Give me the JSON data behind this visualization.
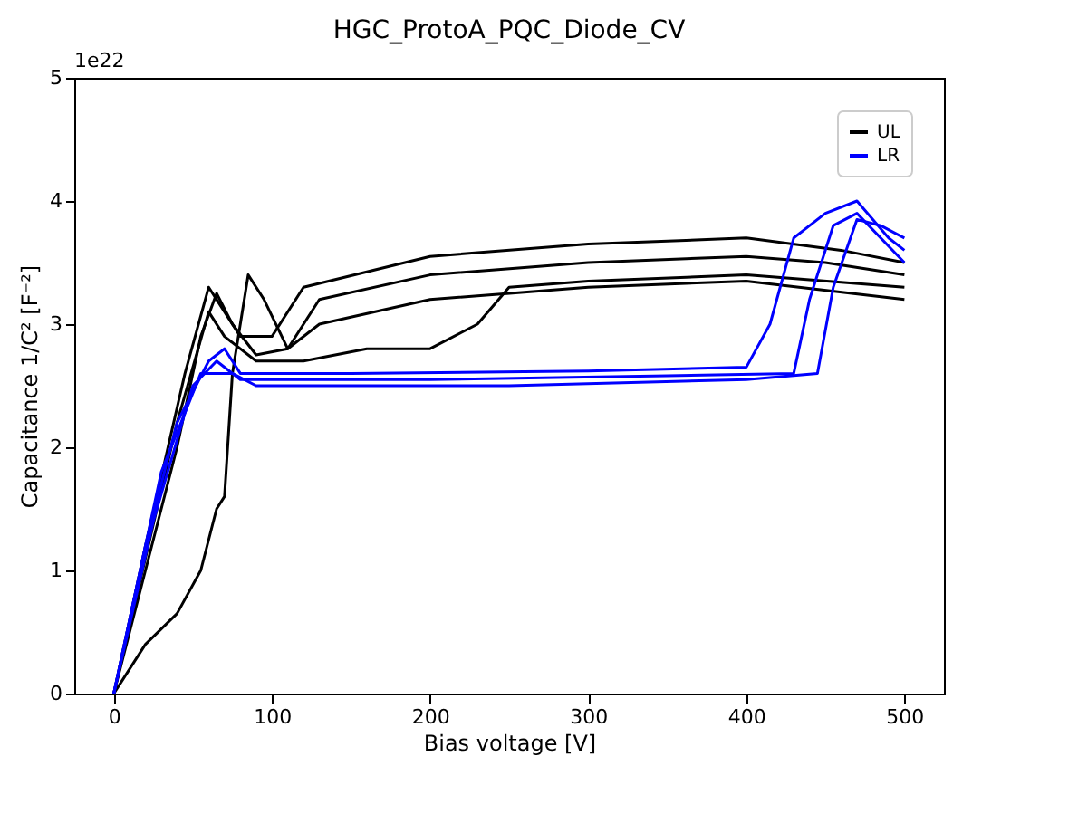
{
  "chart_data": {
    "type": "line",
    "title": "HGC_ProtoA_PQC_Diode_CV",
    "xlabel": "Bias voltage [V]",
    "ylabel": "Capacitance 1/C² [F⁻²]",
    "annotations": [
      "1e22"
    ],
    "xlim": [
      -25,
      525
    ],
    "xticks": [
      0,
      100,
      200,
      300,
      400,
      500
    ],
    "ylim": [
      0,
      5
    ],
    "yticks": [
      0,
      1,
      2,
      3,
      4,
      5
    ],
    "grid": false,
    "legend": "top right",
    "line_style": "solid",
    "marker": "none",
    "series": [
      {
        "name": "UL",
        "color": "#000000",
        "x": [
          0,
          20,
          40,
          55,
          65,
          75,
          90,
          110,
          130,
          200,
          300,
          400,
          450,
          500
        ],
        "values": [
          0,
          1.0,
          2.0,
          2.9,
          3.25,
          3.0,
          2.75,
          2.8,
          3.2,
          3.4,
          3.5,
          3.55,
          3.5,
          3.4
        ]
      },
      {
        "color": "#000000",
        "x": [
          0,
          20,
          40,
          55,
          65,
          70,
          75,
          85,
          95,
          110,
          130,
          200,
          300,
          400,
          500
        ],
        "values": [
          0,
          0.4,
          0.65,
          1.0,
          1.5,
          1.6,
          2.6,
          3.4,
          3.2,
          2.8,
          3.0,
          3.2,
          3.3,
          3.35,
          3.2
        ]
      },
      {
        "color": "#000000",
        "x": [
          0,
          20,
          40,
          60,
          70,
          90,
          120,
          160,
          200,
          230,
          250,
          300,
          400,
          500
        ],
        "values": [
          0,
          1.1,
          2.2,
          3.1,
          2.9,
          2.7,
          2.7,
          2.8,
          2.8,
          3.0,
          3.3,
          3.35,
          3.4,
          3.3
        ]
      },
      {
        "color": "#000000",
        "x": [
          0,
          20,
          45,
          60,
          80,
          100,
          120,
          200,
          300,
          400,
          460,
          500
        ],
        "values": [
          0,
          1.2,
          2.6,
          3.3,
          2.9,
          2.9,
          3.3,
          3.55,
          3.65,
          3.7,
          3.6,
          3.5
        ]
      },
      {
        "name": "LR",
        "color": "#0000ff",
        "x": [
          0,
          20,
          40,
          60,
          70,
          80,
          150,
          300,
          400,
          415,
          430,
          450,
          470,
          490,
          500
        ],
        "values": [
          0,
          1.2,
          2.2,
          2.7,
          2.8,
          2.6,
          2.6,
          2.62,
          2.65,
          3.0,
          3.7,
          3.9,
          4.0,
          3.7,
          3.6
        ]
      },
      {
        "color": "#0000ff",
        "x": [
          0,
          25,
          50,
          65,
          80,
          200,
          350,
          430,
          440,
          455,
          470,
          500
        ],
        "values": [
          0,
          1.4,
          2.5,
          2.7,
          2.55,
          2.55,
          2.58,
          2.6,
          3.2,
          3.8,
          3.9,
          3.5
        ]
      },
      {
        "color": "#0000ff",
        "x": [
          0,
          30,
          55,
          75,
          90,
          250,
          400,
          445,
          455,
          470,
          485,
          500
        ],
        "values": [
          0,
          1.8,
          2.6,
          2.6,
          2.5,
          2.5,
          2.55,
          2.6,
          3.3,
          3.85,
          3.8,
          3.7
        ]
      }
    ]
  }
}
